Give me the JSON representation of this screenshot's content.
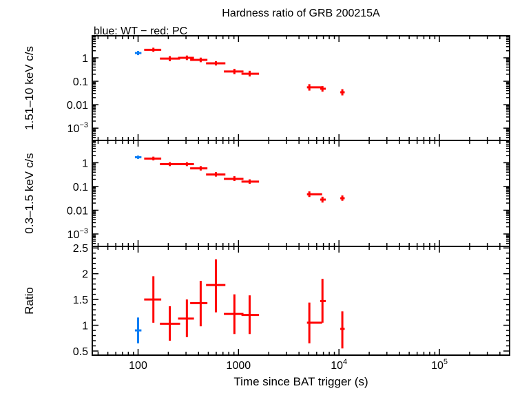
{
  "chart_data": {
    "type": "scatter",
    "title": "Hardness ratio of GRB 200215A",
    "subtitle": "blue: WT − red: PC",
    "xlabel": "Time since BAT trigger (s)",
    "xscale": "log",
    "xlim": [
      35,
      500000
    ],
    "xticks": [
      {
        "v": 100,
        "label": "100"
      },
      {
        "v": 1000,
        "label": "1000"
      },
      {
        "v": 10000,
        "base": "10",
        "exp": "4"
      },
      {
        "v": 100000,
        "base": "10",
        "exp": "5"
      }
    ],
    "colors": {
      "WT": "#0a7df5",
      "PC": "#ff0000"
    },
    "x": {
      "WT": [
        {
          "t": 100,
          "lo": 93,
          "hi": 108
        }
      ],
      "PC": [
        {
          "t": 142,
          "lo": 115,
          "hi": 170
        },
        {
          "t": 207,
          "lo": 165,
          "hi": 262
        },
        {
          "t": 306,
          "lo": 250,
          "hi": 360
        },
        {
          "t": 420,
          "lo": 330,
          "hi": 490
        },
        {
          "t": 595,
          "lo": 475,
          "hi": 740
        },
        {
          "t": 910,
          "lo": 715,
          "hi": 1120
        },
        {
          "t": 1290,
          "lo": 1070,
          "hi": 1600
        },
        {
          "t": 5070,
          "lo": 4800,
          "hi": 6800
        },
        {
          "t": 6850,
          "lo": 6500,
          "hi": 7400
        },
        {
          "t": 10800,
          "lo": 10300,
          "hi": 11400
        }
      ]
    },
    "panels": [
      {
        "ylabel": "1.51–10 keV c/s",
        "yscale": "log",
        "ylim": [
          0.0003,
          8.7
        ],
        "yticks": [
          {
            "v": 1,
            "label": "1"
          },
          {
            "v": 0.1,
            "label": "0.1"
          },
          {
            "v": 0.01,
            "label": "0.01"
          },
          {
            "v": 0.001,
            "base": "10",
            "exp": "−3"
          }
        ],
        "WT": [
          {
            "y": 1.6,
            "lo": 1.3,
            "hi": 1.95
          }
        ],
        "PC": [
          {
            "y": 2.2,
            "lo": 1.8,
            "hi": 2.7
          },
          {
            "y": 0.93,
            "lo": 0.72,
            "hi": 1.18
          },
          {
            "y": 1.0,
            "lo": 0.8,
            "hi": 1.25
          },
          {
            "y": 0.82,
            "lo": 0.65,
            "hi": 1.02
          },
          {
            "y": 0.58,
            "lo": 0.47,
            "hi": 0.72
          },
          {
            "y": 0.26,
            "lo": 0.2,
            "hi": 0.34
          },
          {
            "y": 0.21,
            "lo": 0.16,
            "hi": 0.28
          },
          {
            "y": 0.055,
            "lo": 0.04,
            "hi": 0.075
          },
          {
            "y": 0.048,
            "lo": 0.036,
            "hi": 0.062
          },
          {
            "y": 0.034,
            "lo": 0.025,
            "hi": 0.046
          }
        ]
      },
      {
        "ylabel": "0.3–1.5 keV c/s",
        "yscale": "log",
        "ylim": [
          0.0003,
          8.7
        ],
        "yticks": [
          {
            "v": 1,
            "label": "1"
          },
          {
            "v": 0.1,
            "label": "0.1"
          },
          {
            "v": 0.01,
            "label": "0.01"
          },
          {
            "v": 0.001,
            "base": "10",
            "exp": "−3"
          }
        ],
        "WT": [
          {
            "y": 1.7,
            "lo": 1.45,
            "hi": 2.0
          }
        ],
        "PC": [
          {
            "y": 1.5,
            "lo": 1.25,
            "hi": 1.8
          },
          {
            "y": 0.87,
            "lo": 0.72,
            "hi": 1.05
          },
          {
            "y": 0.87,
            "lo": 0.72,
            "hi": 1.05
          },
          {
            "y": 0.58,
            "lo": 0.47,
            "hi": 0.72
          },
          {
            "y": 0.32,
            "lo": 0.26,
            "hi": 0.4
          },
          {
            "y": 0.21,
            "lo": 0.17,
            "hi": 0.27
          },
          {
            "y": 0.16,
            "lo": 0.13,
            "hi": 0.2
          },
          {
            "y": 0.047,
            "lo": 0.036,
            "hi": 0.062
          },
          {
            "y": 0.028,
            "lo": 0.021,
            "hi": 0.037
          },
          {
            "y": 0.032,
            "lo": 0.025,
            "hi": 0.042
          }
        ]
      },
      {
        "ylabel": "Ratio",
        "yscale": "linear",
        "ylim": [
          0.42,
          2.53
        ],
        "yticks": [
          {
            "v": 2.5,
            "label": "2.5"
          },
          {
            "v": 2,
            "label": "2"
          },
          {
            "v": 1.5,
            "label": "1.5"
          },
          {
            "v": 1,
            "label": "1"
          },
          {
            "v": 0.5,
            "label": "0.5"
          }
        ],
        "WT": [
          {
            "y": 0.9,
            "lo": 0.65,
            "hi": 1.15
          }
        ],
        "PC": [
          {
            "y": 1.5,
            "lo": 1.05,
            "hi": 1.95
          },
          {
            "y": 1.03,
            "lo": 0.7,
            "hi": 1.37
          },
          {
            "y": 1.13,
            "lo": 0.77,
            "hi": 1.5
          },
          {
            "y": 1.43,
            "lo": 0.98,
            "hi": 1.86
          },
          {
            "y": 1.78,
            "lo": 1.25,
            "hi": 2.28
          },
          {
            "y": 1.22,
            "lo": 0.83,
            "hi": 1.6
          },
          {
            "y": 1.2,
            "lo": 0.83,
            "hi": 1.58
          },
          {
            "y": 1.05,
            "lo": 0.65,
            "hi": 1.44
          },
          {
            "y": 1.47,
            "lo": 1.05,
            "hi": 1.9
          },
          {
            "y": 0.93,
            "lo": 0.55,
            "hi": 1.27
          }
        ]
      }
    ]
  }
}
